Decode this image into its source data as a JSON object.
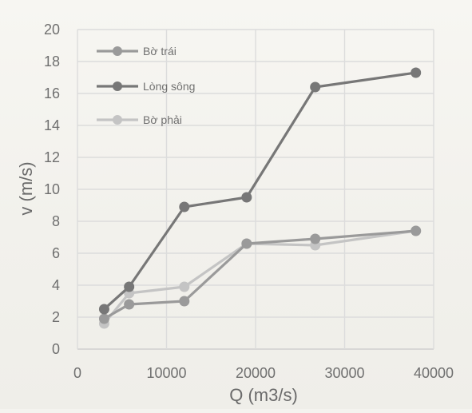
{
  "chart_data": {
    "type": "line",
    "title": "",
    "xlabel": "Q (m3/s)",
    "ylabel": "v (m/s)",
    "xlim": [
      0,
      40000
    ],
    "ylim": [
      0,
      20
    ],
    "x_ticks": [
      0,
      10000,
      20000,
      30000,
      40000
    ],
    "y_ticks": [
      0,
      2,
      4,
      6,
      8,
      10,
      12,
      14,
      16,
      18,
      20
    ],
    "grid": true,
    "legend_position": "top-left",
    "series": [
      {
        "name": "Bờ trái",
        "color": "#9a9a9a",
        "x": [
          3000,
          5800,
          12000,
          19000,
          26700,
          38000
        ],
        "y": [
          1.9,
          2.8,
          3.0,
          6.6,
          6.9,
          7.4
        ]
      },
      {
        "name": "Lòng sông",
        "color": "#777777",
        "x": [
          3000,
          5800,
          12000,
          19000,
          26700,
          38000
        ],
        "y": [
          2.5,
          3.9,
          8.9,
          9.5,
          16.4,
          17.3
        ]
      },
      {
        "name": "Bờ phải",
        "color": "#c4c4c4",
        "x": [
          3000,
          5800,
          12000,
          19000,
          26700,
          38000
        ],
        "y": [
          1.6,
          3.5,
          3.9,
          6.6,
          6.5,
          7.4
        ]
      }
    ]
  }
}
